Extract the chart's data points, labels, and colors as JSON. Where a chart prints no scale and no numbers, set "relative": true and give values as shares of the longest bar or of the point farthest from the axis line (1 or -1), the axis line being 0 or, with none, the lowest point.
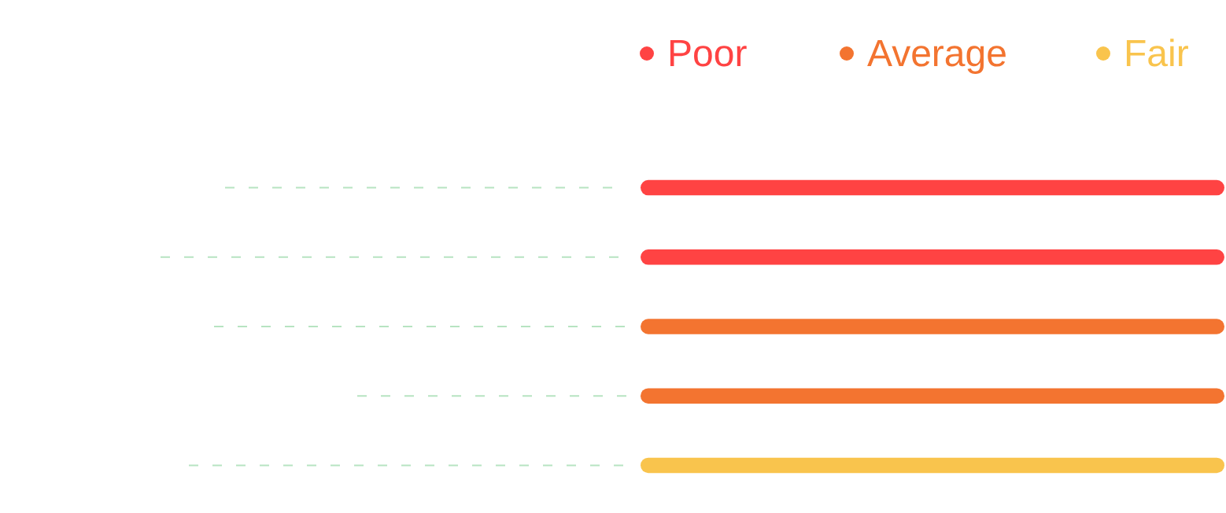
{
  "chart_data": {
    "type": "bar",
    "orientation": "horizontal",
    "relative": true,
    "stacked": true,
    "categories": [
      null,
      null,
      null,
      null,
      null
    ],
    "series": [
      {
        "name": "Poor",
        "color": "#ff4343",
        "values": [
          1,
          1,
          null,
          null,
          null
        ]
      },
      {
        "name": "Average",
        "color": "#f37430",
        "values": [
          null,
          null,
          1,
          1,
          null
        ]
      },
      {
        "name": "Fair",
        "color": "#f9c44d",
        "values": [
          null,
          null,
          null,
          null,
          1
        ]
      }
    ],
    "legend": "top right"
  }
}
